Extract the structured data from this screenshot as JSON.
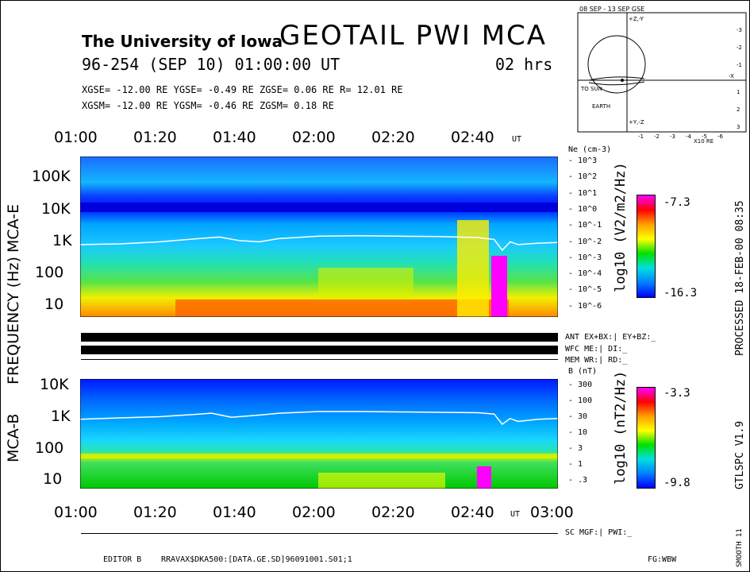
{
  "header": {
    "university": "The University of Iowa",
    "title": "GEOTAIL  PWI  MCA",
    "date_line": "96-254 (SEP 10) 01:00:00 UT",
    "duration": "02 hrs",
    "gse_line": "XGSE= -12.00 RE   YGSE=  -0.49 RE   ZGSE=   0.06 RE   R= 12.01 RE",
    "gsm_line": "XGSM= -12.00 RE   YGSM=  -0.46 RE   ZGSM=   0.18 RE"
  },
  "orbit": {
    "title": "08 SEP - 13 SEP  GSE",
    "to_sun": "TO SUN",
    "earth": "EARTH",
    "units": "X10 RE",
    "x_ticks": [
      "-1",
      "-2",
      "-3",
      "-4",
      "-5",
      "-6"
    ],
    "y_ticks": [
      "-3",
      "-2",
      "-1",
      "1",
      "2",
      "3"
    ],
    "axis_labels": [
      "+Z,-Y",
      "+Y,-Z",
      "-X"
    ]
  },
  "chart_data": [
    {
      "type": "heatmap",
      "name": "MCA-E",
      "xlabel": "UT",
      "x_ticks": [
        "01:00",
        "01:20",
        "01:40",
        "02:00",
        "02:20",
        "02:40"
      ],
      "ylabel": "FREQUENCY (Hz)",
      "y_scale": "log",
      "y_ticks": [
        "10",
        "100",
        "1K",
        "10K",
        "100K"
      ],
      "right_axis_label": "Ne (cm-3)",
      "right_axis_ticks": [
        "10^3",
        "10^2",
        "10^1",
        "10^0",
        "10^-1",
        "10^-2",
        "10^-3",
        "10^-4",
        "10^-5",
        "10^-6"
      ],
      "colorbar": {
        "label": "log10 (V2/m2/Hz)",
        "max": "-7.3",
        "min": "-16.3"
      },
      "overlay_line_ne": {
        "t_minutes": [
          0,
          10,
          20,
          30,
          35,
          40,
          45,
          50,
          60,
          70,
          80,
          90,
          100,
          104,
          106,
          108,
          110,
          115,
          120
        ],
        "freq_hz": [
          900,
          950,
          1100,
          1400,
          1550,
          1200,
          1100,
          1400,
          1650,
          1700,
          1650,
          1600,
          1500,
          1300,
          600,
          1100,
          900,
          1000,
          1050
        ]
      }
    },
    {
      "type": "heatmap",
      "name": "MCA-B",
      "xlabel": "UT",
      "x_ticks": [
        "01:00",
        "01:20",
        "01:40",
        "02:00",
        "02:20",
        "02:40",
        "03:00"
      ],
      "y_scale": "log",
      "y_ticks": [
        "10",
        "100",
        "1K",
        "10K"
      ],
      "right_axis_label": "B (nT)",
      "right_axis_ticks": [
        "300",
        "100",
        "30",
        "10",
        "3",
        "1",
        ".3"
      ],
      "colorbar": {
        "label": "log10 (nT2/Hz)",
        "max": "-3.3",
        "min": "-9.8"
      },
      "overlay_line_b": {
        "t_minutes": [
          0,
          10,
          20,
          30,
          33,
          38,
          45,
          50,
          60,
          70,
          80,
          90,
          100,
          104,
          106,
          108,
          110,
          115,
          120
        ],
        "freq_hz": [
          950,
          1050,
          1150,
          1400,
          1500,
          1100,
          1300,
          1500,
          1700,
          1700,
          1650,
          1600,
          1550,
          1400,
          650,
          1000,
          800,
          950,
          1000
        ]
      }
    }
  ],
  "status": {
    "ant": "ANT EX+BX:|  EY+BZ:_",
    "wfc": "WFC ME:|     DI:_",
    "mem": "MEM WR:|     RD:_",
    "sc": "SC MGF:|   PWI:_"
  },
  "right_labels": {
    "processed": "PROCESSED 18-FEB-00  08:35",
    "version": "GTLSPC   V1.9",
    "smooth": "SMOOTH 11"
  },
  "footer": {
    "editor": "EDITOR B",
    "file": "RRAVAX$DKA500:[DATA.GE.SD]96091001.S01;1",
    "fg": "FG:WBW"
  },
  "side_labels": {
    "mca_e": "MCA-E",
    "mca_b": "MCA-B",
    "frequency": "FREQUENCY (Hz)",
    "ut": "UT"
  }
}
